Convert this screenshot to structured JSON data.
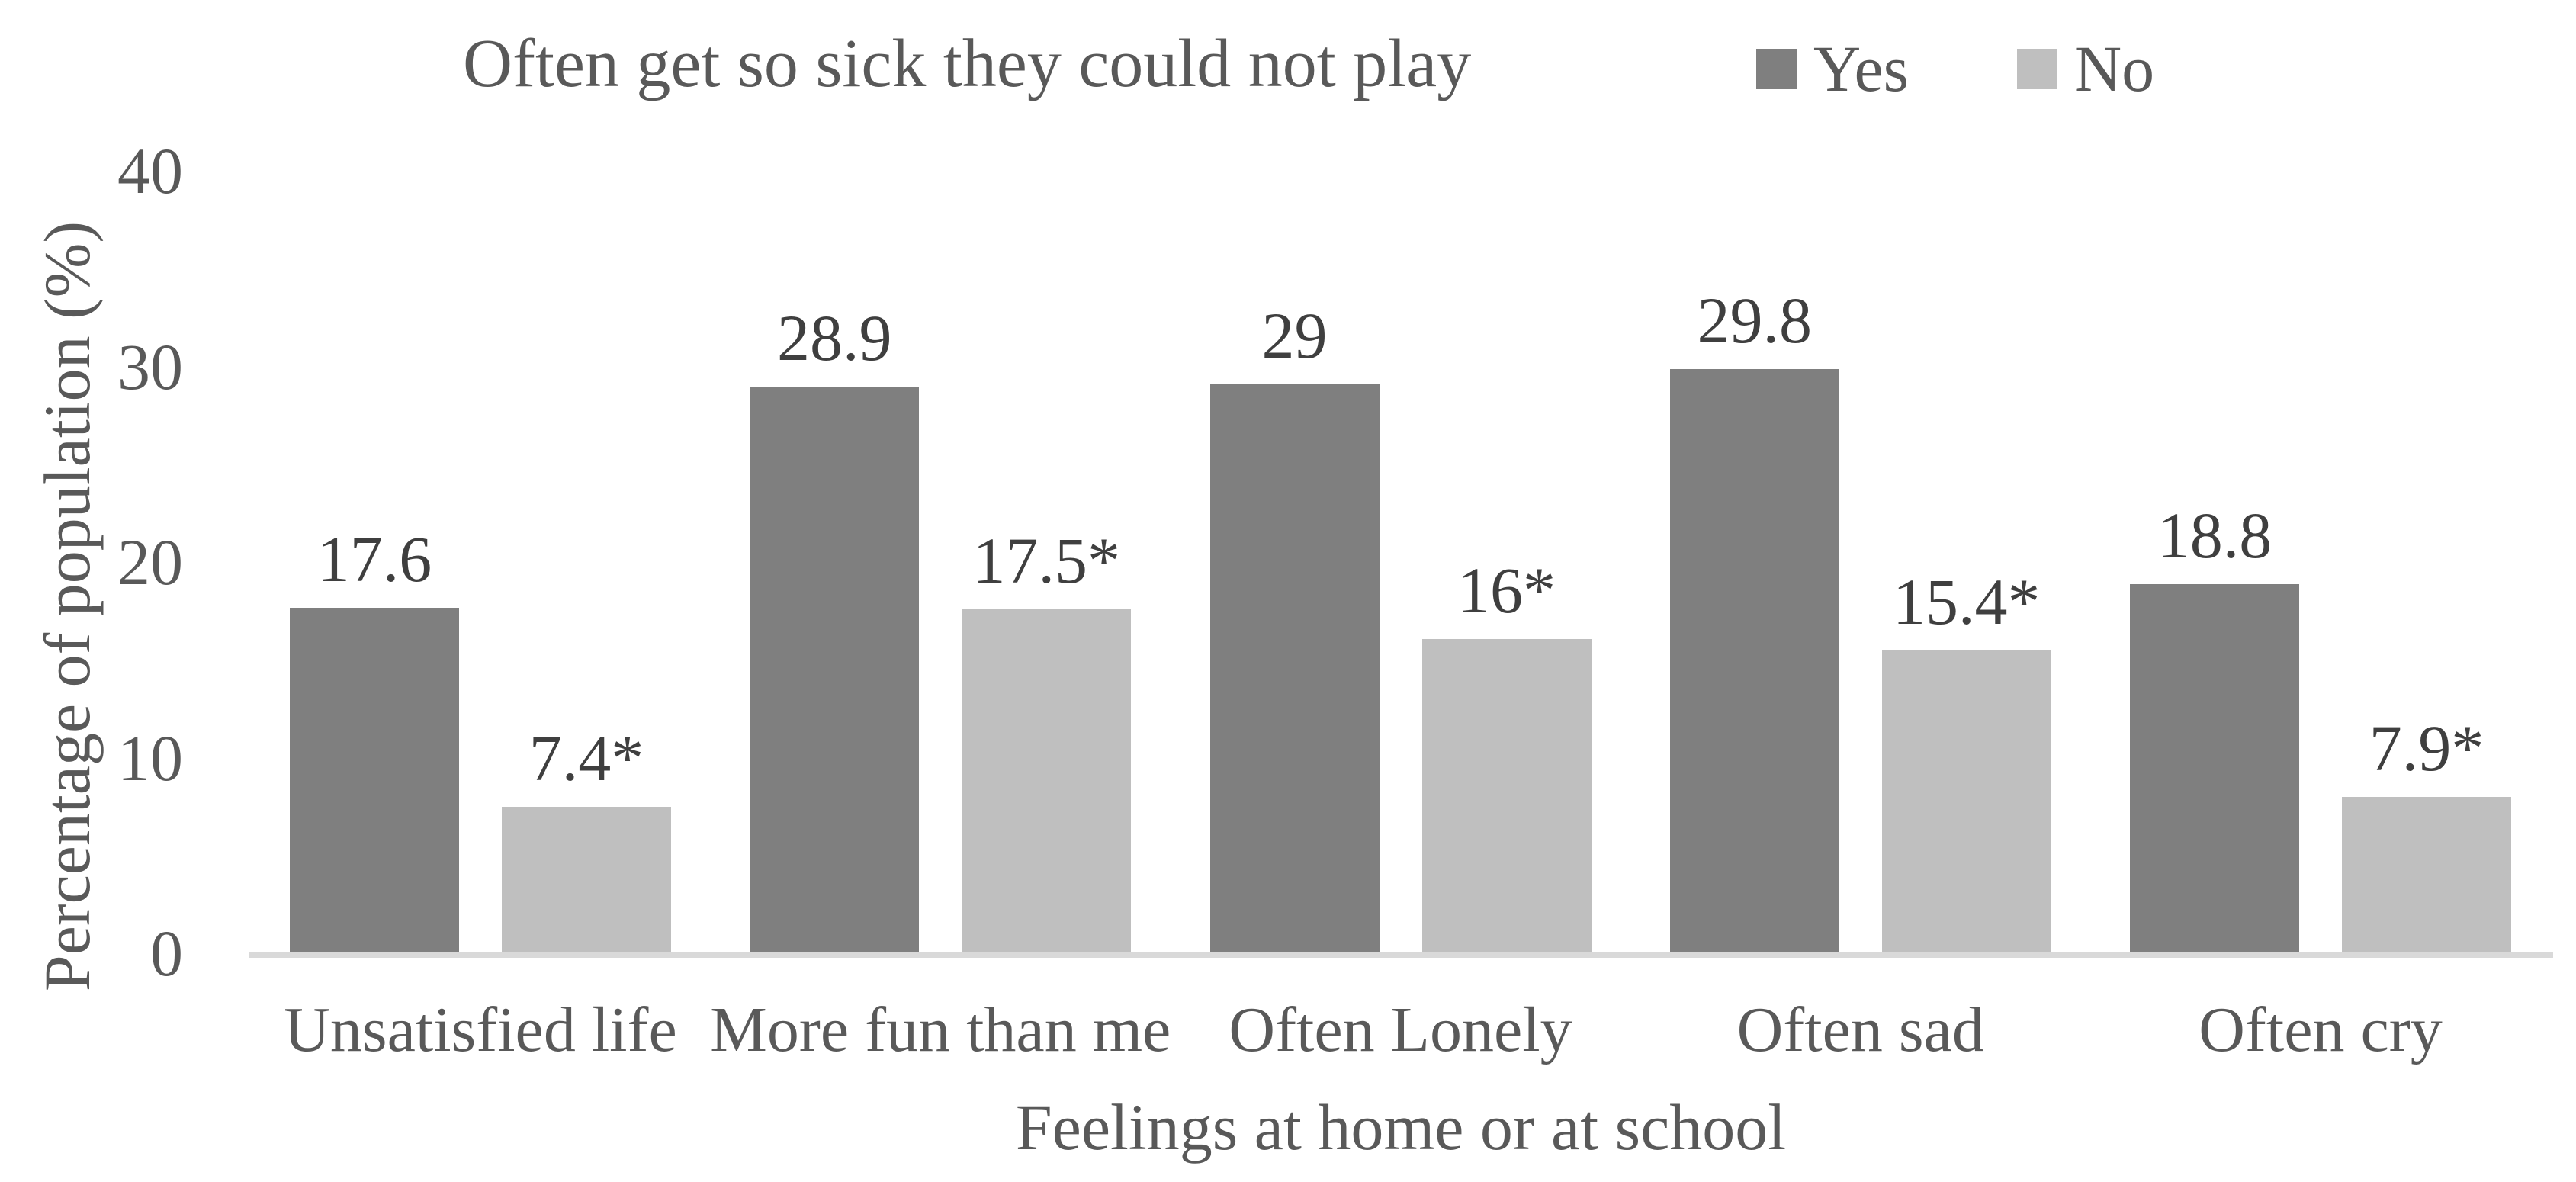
{
  "title": "Often get so sick they could not play",
  "chart_data": {
    "type": "bar",
    "title": "Often get so sick they could not play",
    "categories": [
      "Unsatisfied life",
      "More fun than me",
      "Often Lonely",
      "Often sad",
      "Often cry"
    ],
    "series": [
      {
        "name": "Yes",
        "color": "#7f7f7f",
        "values": [
          17.6,
          28.9,
          29,
          29.8,
          18.8
        ],
        "data_labels": [
          "17.6",
          "28.9",
          "29",
          "29.8",
          "18.8"
        ]
      },
      {
        "name": "No",
        "color": "#bfbfbf",
        "values": [
          7.4,
          17.5,
          16,
          15.4,
          7.9
        ],
        "data_labels": [
          "7.4*",
          "17.5*",
          "16*",
          "15.4*",
          "7.9*"
        ]
      }
    ],
    "xlabel": "Feelings at home or at school",
    "ylabel": "Percentage of population (%)",
    "yticks": [
      0,
      10,
      20,
      30,
      40
    ],
    "ylim": [
      0,
      40
    ],
    "grid": false,
    "legend_position": "top-right",
    "axis_line_color": "#d9d9d9",
    "text_color": "#595959",
    "data_label_color": "#3f3f3f"
  }
}
